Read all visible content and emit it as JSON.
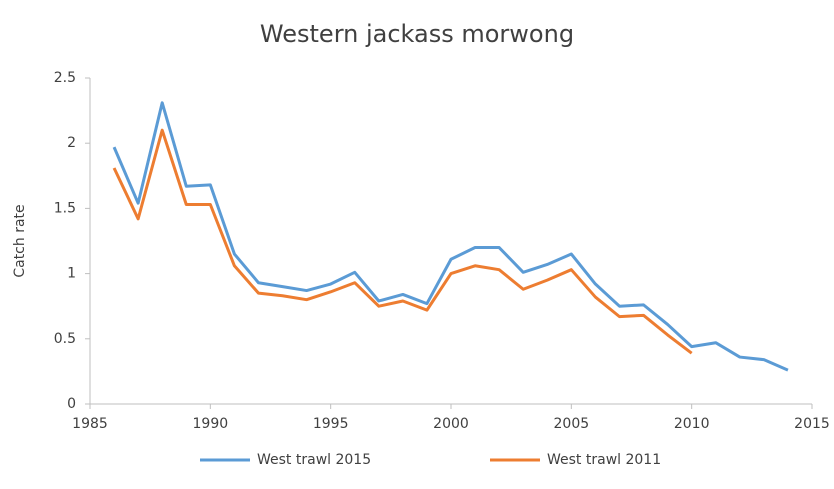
{
  "chart_data": {
    "type": "line",
    "title": "Western jackass morwong",
    "y_label": "Catch rate",
    "x": [
      1986,
      1987,
      1988,
      1989,
      1990,
      1991,
      1992,
      1993,
      1994,
      1995,
      1996,
      1997,
      1998,
      1999,
      2000,
      2001,
      2002,
      2003,
      2004,
      2005,
      2006,
      2007,
      2008,
      2009,
      2010,
      2011,
      2012,
      2013,
      2014
    ],
    "series": [
      {
        "name": "West trawl 2015",
        "color": "#5b9bd5",
        "values": [
          1.97,
          1.54,
          2.31,
          1.67,
          1.68,
          1.15,
          0.93,
          0.9,
          0.87,
          0.92,
          1.01,
          0.79,
          0.84,
          0.77,
          1.11,
          1.2,
          1.2,
          1.01,
          1.07,
          1.15,
          0.92,
          0.75,
          0.76,
          0.61,
          0.44,
          0.47,
          0.36,
          0.34,
          0.26
        ]
      },
      {
        "name": "West trawl 2011",
        "color": "#ed7d31",
        "values": [
          1.81,
          1.42,
          2.1,
          1.53,
          1.53,
          1.06,
          0.85,
          0.83,
          0.8,
          0.86,
          0.93,
          0.75,
          0.79,
          0.72,
          1.0,
          1.06,
          1.03,
          0.88,
          0.95,
          1.03,
          0.82,
          0.67,
          0.68,
          0.53,
          0.39,
          null,
          null,
          null,
          null
        ]
      }
    ],
    "xlim": [
      1985,
      2015
    ],
    "xticks": [
      1985,
      1990,
      1995,
      2000,
      2005,
      2010,
      2015
    ],
    "ylim": [
      0,
      2.5
    ],
    "yticks": [
      0,
      0.5,
      1,
      1.5,
      2,
      2.5
    ],
    "grid": false,
    "legend": "bottom"
  }
}
